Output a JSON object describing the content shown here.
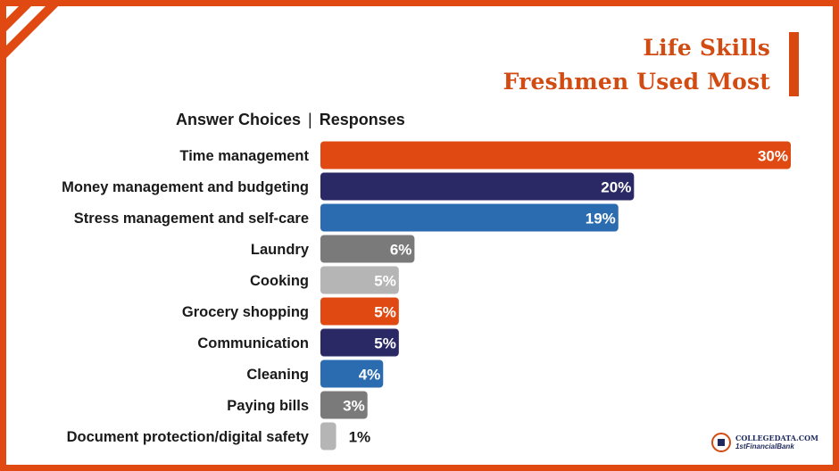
{
  "title": {
    "line1": "Life Skills",
    "line2": "Freshmen Used Most"
  },
  "header": {
    "left": "Answer Choices",
    "separator": "|",
    "right": "Responses"
  },
  "logo": {
    "line1": "COLLEGEDATA.COM",
    "line2": "1stFinancialBank"
  },
  "colors": {
    "orange": "#e04a12",
    "navy": "#2a2865",
    "blue": "#2b6cb0",
    "gray": "#7a7a7a",
    "light_gray": "#b5b5b5",
    "frame": "#e04a12"
  },
  "chart_data": {
    "type": "bar",
    "orientation": "horizontal",
    "categories": [
      "Time management",
      "Money management and budgeting",
      "Stress management and self-care",
      "Laundry",
      "Cooking",
      "Grocery shopping",
      "Communication",
      "Cleaning",
      "Paying bills",
      "Document protection/digital safety"
    ],
    "values": [
      30,
      20,
      19,
      6,
      5,
      5,
      5,
      4,
      3,
      1
    ],
    "labels": [
      "30%",
      "20%",
      "19%",
      "6%",
      "5%",
      "5%",
      "5%",
      "4%",
      "3%",
      "1%"
    ],
    "bar_colors": [
      "#e04a12",
      "#2a2865",
      "#2b6cb0",
      "#7a7a7a",
      "#b5b5b5",
      "#e04a12",
      "#2a2865",
      "#2b6cb0",
      "#7a7a7a",
      "#b5b5b5"
    ],
    "xlim": [
      0,
      30
    ],
    "grid": false,
    "title": "",
    "xlabel": "",
    "ylabel": ""
  }
}
